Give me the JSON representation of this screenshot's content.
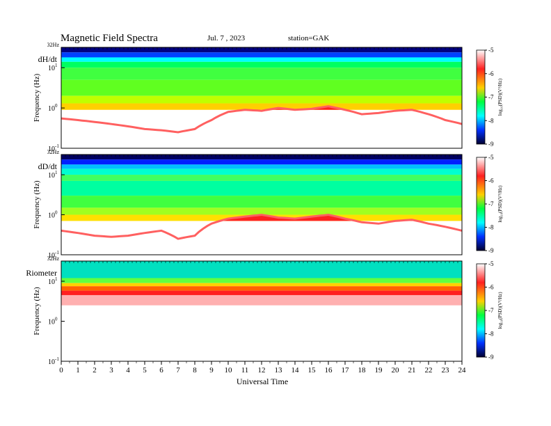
{
  "header": {
    "title": "Magnetic  Field  Spectra",
    "date": "Jul.  7  ,  2023",
    "station": "station=GAK"
  },
  "chart_data": [
    {
      "type": "heatmap",
      "panel_label": "dH/dt",
      "top_label": "32Hz",
      "ylabel": "Frequency  (Hz)",
      "yscale": "log",
      "ylim": [
        0.1,
        32
      ],
      "yticks": [
        {
          "base": "10",
          "exp": "1"
        },
        {
          "base": "10",
          "exp": "0"
        },
        {
          "base": "10",
          "exp": "-1"
        }
      ],
      "colorbar": {
        "label": "log₁₀(PSD)(V²/Hz)",
        "ticks": [
          "-5",
          "-6",
          "-7",
          "-8",
          "-9"
        ],
        "range": [
          -9,
          -5
        ]
      },
      "cutoff_hz": [
        0.55,
        0.5,
        0.45,
        0.4,
        0.35,
        0.3,
        0.28,
        0.25,
        0.3,
        0.5,
        0.8,
        0.9,
        0.85,
        1.0,
        0.9,
        0.95,
        1.1,
        0.9,
        0.7,
        0.75,
        0.85,
        0.9,
        0.7,
        0.5,
        0.4
      ]
    },
    {
      "type": "heatmap",
      "panel_label": "dD/dt",
      "top_label": "32Hz",
      "ylabel": "Frequency  (Hz)",
      "yscale": "log",
      "ylim": [
        0.1,
        32
      ],
      "yticks": [
        {
          "base": "10",
          "exp": "1"
        },
        {
          "base": "10",
          "exp": "0"
        },
        {
          "base": "10",
          "exp": "-1"
        }
      ],
      "colorbar": {
        "label": "log₁₀(PSD)(V²/Hz)",
        "ticks": [
          "-5",
          "-6",
          "-7",
          "-8",
          "-9"
        ],
        "range": [
          -9,
          -5
        ]
      },
      "cutoff_hz": [
        0.4,
        0.35,
        0.3,
        0.28,
        0.3,
        0.35,
        0.4,
        0.25,
        0.3,
        0.6,
        0.8,
        0.9,
        1.0,
        0.85,
        0.8,
        0.9,
        1.0,
        0.8,
        0.65,
        0.6,
        0.7,
        0.75,
        0.6,
        0.5,
        0.4
      ]
    },
    {
      "type": "heatmap",
      "panel_label": "Riometer",
      "top_label": "32Hz",
      "ylabel": "Frequency  (Hz)",
      "yscale": "log",
      "ylim": [
        0.1,
        32
      ],
      "yticks": [
        {
          "base": "10",
          "exp": "1"
        },
        {
          "base": "10",
          "exp": "0"
        },
        {
          "base": "10",
          "exp": "-1"
        }
      ],
      "colorbar": {
        "label": "log₁₀(PSD)(V²/Hz)",
        "ticks": [
          "-5",
          "-6",
          "-7",
          "-8",
          "-9"
        ],
        "range": [
          -9,
          -5
        ]
      },
      "cutoff_hz": [
        4.5,
        4.5,
        4.5,
        4.5,
        4.5,
        4.5,
        4.5,
        4.5,
        4.5,
        4.5,
        4.5,
        4.5,
        4.5,
        4.5,
        4.5,
        4.5,
        4.5,
        4.5,
        4.5,
        4.5,
        4.5,
        4.5,
        4.5,
        4.5,
        4.5
      ]
    }
  ],
  "x_axis": {
    "label": "Universal Time",
    "xlim": [
      0,
      24
    ],
    "ticks": [
      "0",
      "1",
      "2",
      "3",
      "4",
      "5",
      "6",
      "7",
      "8",
      "9",
      "10",
      "11",
      "12",
      "13",
      "14",
      "15",
      "16",
      "17",
      "18",
      "19",
      "20",
      "21",
      "22",
      "23",
      "24"
    ]
  },
  "colors": {
    "colormap": [
      "#000040",
      "#0000ff",
      "#00ffff",
      "#00ff00",
      "#ffff00",
      "#ff0000",
      "#ffffff"
    ],
    "axis": "#000000"
  }
}
